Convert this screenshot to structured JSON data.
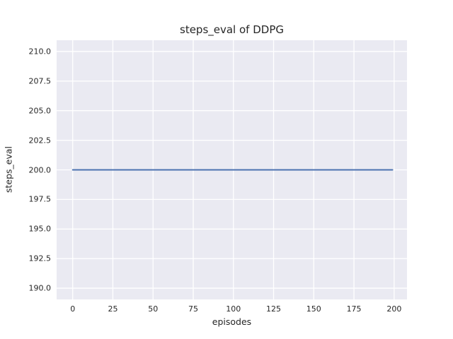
{
  "chart_data": {
    "type": "line",
    "title": "steps_eval of DDPG",
    "xlabel": "episodes",
    "ylabel": "steps_eval",
    "xlim": [
      -10,
      208
    ],
    "ylim": [
      189.05,
      210.95
    ],
    "xticks": [
      {
        "value": 0,
        "label": "0"
      },
      {
        "value": 25,
        "label": "25"
      },
      {
        "value": 50,
        "label": "50"
      },
      {
        "value": 75,
        "label": "75"
      },
      {
        "value": 100,
        "label": "100"
      },
      {
        "value": 125,
        "label": "125"
      },
      {
        "value": 150,
        "label": "150"
      },
      {
        "value": 175,
        "label": "175"
      },
      {
        "value": 200,
        "label": "200"
      }
    ],
    "yticks": [
      {
        "value": 190.0,
        "label": "190.0"
      },
      {
        "value": 192.5,
        "label": "192.5"
      },
      {
        "value": 195.0,
        "label": "195.0"
      },
      {
        "value": 197.5,
        "label": "197.5"
      },
      {
        "value": 200.0,
        "label": "200.0"
      },
      {
        "value": 202.5,
        "label": "202.5"
      },
      {
        "value": 205.0,
        "label": "205.0"
      },
      {
        "value": 207.5,
        "label": "207.5"
      },
      {
        "value": 210.0,
        "label": "210.0"
      }
    ],
    "series": [
      {
        "name": "DDPG",
        "color": "#4c72b0",
        "x": [
          0,
          199
        ],
        "y": [
          200,
          200
        ],
        "constant_value": 200
      }
    ],
    "grid": true,
    "legend": "none",
    "style": {
      "axes_background": "#eaeaf2",
      "grid_color": "#ffffff",
      "text_color": "#262626",
      "figure_background": "#ffffff"
    }
  }
}
